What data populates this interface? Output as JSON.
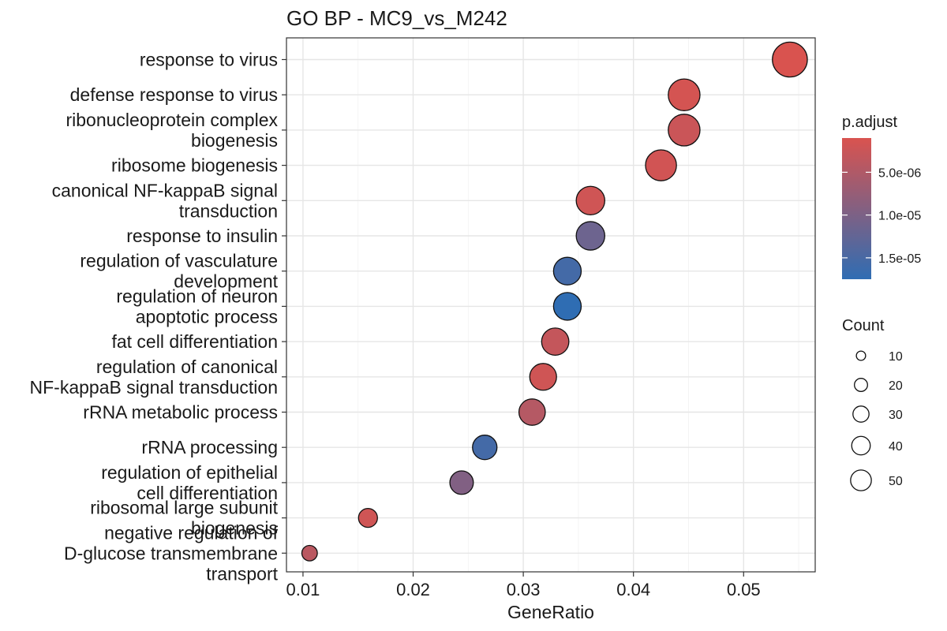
{
  "chart_data": {
    "type": "scatter",
    "title": "GO BP - MC9_vs_M242",
    "xlabel": "GeneRatio",
    "ylabel": "",
    "xlim": [
      0.0085,
      0.0565
    ],
    "xticks": [
      0.01,
      0.02,
      0.03,
      0.04,
      0.05
    ],
    "xtick_labels": [
      "0.01",
      "0.02",
      "0.03",
      "0.04",
      "0.05"
    ],
    "grid": true,
    "legend_position": "right",
    "categories": [
      "response to virus",
      "defense response to virus",
      "ribonucleoprotein complex\nbiogenesis",
      "ribosome biogenesis",
      "canonical NF-kappaB signal\ntransduction",
      "response to insulin",
      "regulation of vasculature\ndevelopment",
      "regulation of neuron\napoptotic process",
      "fat cell differentiation",
      "regulation of canonical\nNF-kappaB signal transduction",
      "rRNA metabolic process",
      "rRNA processing",
      "regulation of epithelial\ncell differentiation",
      "ribosomal large subunit\nbiogenesis",
      "negative regulation of\nD-glucose transmembrane\ntransport"
    ],
    "points": [
      {
        "term": "response to virus",
        "GeneRatio": 0.0542,
        "Count": 51,
        "p_adjust": 1e-06
      },
      {
        "term": "defense response to virus",
        "GeneRatio": 0.0446,
        "Count": 42,
        "p_adjust": 1.5e-06
      },
      {
        "term": "ribonucleoprotein complex biogenesis",
        "GeneRatio": 0.0446,
        "Count": 42,
        "p_adjust": 2.5e-06
      },
      {
        "term": "ribosome biogenesis",
        "GeneRatio": 0.0425,
        "Count": 40,
        "p_adjust": 1.8e-06
      },
      {
        "term": "canonical NF-kappaB signal transduction",
        "GeneRatio": 0.0361,
        "Count": 34,
        "p_adjust": 2e-06
      },
      {
        "term": "response to insulin",
        "GeneRatio": 0.0361,
        "Count": 34,
        "p_adjust": 1.15e-05
      },
      {
        "term": "regulation of vasculature development",
        "GeneRatio": 0.034,
        "Count": 32,
        "p_adjust": 1.55e-05
      },
      {
        "term": "regulation of neuron apoptotic process",
        "GeneRatio": 0.034,
        "Count": 32,
        "p_adjust": 1.75e-05
      },
      {
        "term": "fat cell differentiation",
        "GeneRatio": 0.0329,
        "Count": 31,
        "p_adjust": 3e-06
      },
      {
        "term": "regulation of canonical NF-kappaB signal transduction",
        "GeneRatio": 0.0318,
        "Count": 30,
        "p_adjust": 2e-06
      },
      {
        "term": "rRNA metabolic process",
        "GeneRatio": 0.0308,
        "Count": 29,
        "p_adjust": 4.5e-06
      },
      {
        "term": "rRNA processing",
        "GeneRatio": 0.0265,
        "Count": 25,
        "p_adjust": 1.55e-05
      },
      {
        "term": "regulation of epithelial cell differentiation",
        "GeneRatio": 0.0244,
        "Count": 23,
        "p_adjust": 9.5e-06
      },
      {
        "term": "ribosomal large subunit biogenesis",
        "GeneRatio": 0.0159,
        "Count": 15,
        "p_adjust": 2e-06
      },
      {
        "term": "negative regulation of D-glucose transmembrane transport",
        "GeneRatio": 0.0106,
        "Count": 10,
        "p_adjust": 4e-06
      }
    ],
    "color_legend": {
      "title": "p.adjust",
      "low_color": "#d9534f",
      "high_color": "#2f6db3",
      "range": [
        1e-06,
        1.75e-05
      ],
      "ticks": [
        5e-06,
        1e-05,
        1.5e-05
      ],
      "tick_labels": [
        "5.0e-06",
        "1.0e-05",
        "1.5e-05"
      ]
    },
    "size_legend": {
      "title": "Count",
      "values": [
        10,
        20,
        30,
        40,
        50
      ],
      "labels": [
        "10",
        "20",
        "30",
        "40",
        "50"
      ]
    }
  }
}
